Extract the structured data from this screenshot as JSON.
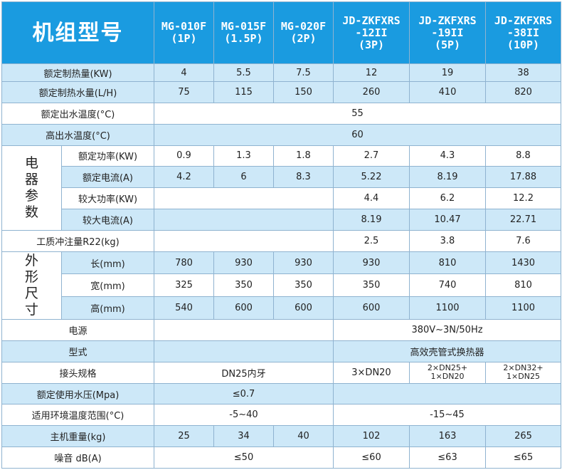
{
  "header": {
    "title": "机组型号",
    "models": [
      {
        "line1": "MG-010F",
        "line2": "(1P)"
      },
      {
        "line1": "MG-015F",
        "line2": "(1.5P)"
      },
      {
        "line1": "MG-020F",
        "line2": "(2P)"
      },
      {
        "line1": "JD-ZKFXRS",
        "line2": "-12II",
        "line3": "(3P)"
      },
      {
        "line1": "JD-ZKFXRS",
        "line2": "-19II",
        "line3": "(5P)"
      },
      {
        "line1": "JD-ZKFXRS",
        "line2": "-38II",
        "line3": "(10P)"
      }
    ]
  },
  "rows": {
    "heat_capacity": {
      "label": "额定制热量(KW)",
      "values": [
        "4",
        "5.5",
        "7.5",
        "12",
        "19",
        "38"
      ]
    },
    "heat_water": {
      "label": "额定制热水量(L/H)",
      "values": [
        "75",
        "115",
        "150",
        "260",
        "410",
        "820"
      ]
    },
    "rated_outlet_temp": {
      "label": "额定出水温度(°C)",
      "value": "55"
    },
    "high_outlet_temp": {
      "label": "高出水温度(°C)",
      "value": "60"
    },
    "electrical": {
      "group_label": "电器参数",
      "rated_power": {
        "label": "额定功率(KW)",
        "values": [
          "0.9",
          "1.3",
          "1.8",
          "2.7",
          "4.3",
          "8.8"
        ]
      },
      "rated_current": {
        "label": "额定电流(A)",
        "values": [
          "4.2",
          "6",
          "8.3",
          "5.22",
          "8.19",
          "17.88"
        ]
      },
      "max_power": {
        "label": "较大功率(KW)",
        "values": [
          "4.4",
          "6.2",
          "12.2"
        ]
      },
      "max_current": {
        "label": "较大电流(A)",
        "values": [
          "8.19",
          "10.47",
          "22.71"
        ]
      }
    },
    "refrigerant": {
      "label": "工质冲注量R22(kg)",
      "values": [
        "2.5",
        "3.8",
        "7.6"
      ]
    },
    "dimensions": {
      "group_label": "外形尺寸",
      "length": {
        "label": "长(mm)",
        "values": [
          "780",
          "930",
          "930",
          "930",
          "810",
          "1430"
        ]
      },
      "width": {
        "label": "宽(mm)",
        "values": [
          "325",
          "350",
          "350",
          "350",
          "740",
          "810"
        ]
      },
      "height": {
        "label": "高(mm)",
        "values": [
          "540",
          "600",
          "600",
          "600",
          "1100",
          "1100"
        ]
      }
    },
    "power_supply": {
      "label": "电源",
      "value": "380V~3N/50Hz"
    },
    "type": {
      "label": "型式",
      "value": "高效壳管式换热器"
    },
    "connection": {
      "label": "接头规格",
      "mg": "DN25内牙",
      "jd3": "3×DN20",
      "jd5_line1": "2×DN25+",
      "jd5_line2": "1×DN20",
      "jd10_line1": "2×DN32+",
      "jd10_line2": "1×DN25"
    },
    "water_pressure": {
      "label": "额定使用水压(Mpa)",
      "value": "≤0.7"
    },
    "ambient_temp": {
      "label": "适用环境温度范围(°C)",
      "mg": "-5~40",
      "jd": "-15~45"
    },
    "weight": {
      "label": "主机重量(kg)",
      "values": [
        "25",
        "34",
        "40",
        "102",
        "163",
        "265"
      ]
    },
    "noise": {
      "label": "噪音 dB(A)",
      "mg": "≤50",
      "jd3": "≤60",
      "jd5": "≤63",
      "jd10": "≤65"
    }
  },
  "colors": {
    "header_bg": "#1a9be0",
    "stripe": "#cde8f8",
    "border": "#8fb3d0"
  }
}
